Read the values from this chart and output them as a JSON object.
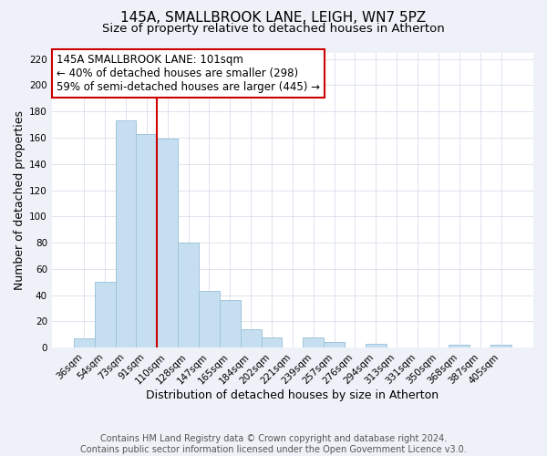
{
  "title": "145A, SMALLBROOK LANE, LEIGH, WN7 5PZ",
  "subtitle": "Size of property relative to detached houses in Atherton",
  "xlabel": "Distribution of detached houses by size in Atherton",
  "ylabel": "Number of detached properties",
  "bar_labels": [
    "36sqm",
    "54sqm",
    "73sqm",
    "91sqm",
    "110sqm",
    "128sqm",
    "147sqm",
    "165sqm",
    "184sqm",
    "202sqm",
    "221sqm",
    "239sqm",
    "257sqm",
    "276sqm",
    "294sqm",
    "313sqm",
    "331sqm",
    "350sqm",
    "368sqm",
    "387sqm",
    "405sqm"
  ],
  "bar_values": [
    7,
    50,
    173,
    163,
    159,
    80,
    43,
    36,
    14,
    8,
    0,
    8,
    4,
    0,
    3,
    0,
    0,
    0,
    2,
    0,
    2
  ],
  "bar_color": "#c6dff0",
  "bar_edge_color": "#a0c4dc",
  "vline_x": 3.5,
  "vline_color": "#cc0000",
  "ylim": [
    0,
    225
  ],
  "yticks": [
    0,
    20,
    40,
    60,
    80,
    100,
    120,
    140,
    160,
    180,
    200,
    220
  ],
  "annotation_title": "145A SMALLBROOK LANE: 101sqm",
  "annotation_line1": "← 40% of detached houses are smaller (298)",
  "annotation_line2": "59% of semi-detached houses are larger (445) →",
  "footer1": "Contains HM Land Registry data © Crown copyright and database right 2024.",
  "footer2": "Contains public sector information licensed under the Open Government Licence v3.0.",
  "bg_color": "#eef2f8",
  "plot_bg_color": "#ffffff",
  "title_fontsize": 11,
  "subtitle_fontsize": 9.5,
  "axis_label_fontsize": 9,
  "tick_fontsize": 7.5,
  "footer_fontsize": 7
}
